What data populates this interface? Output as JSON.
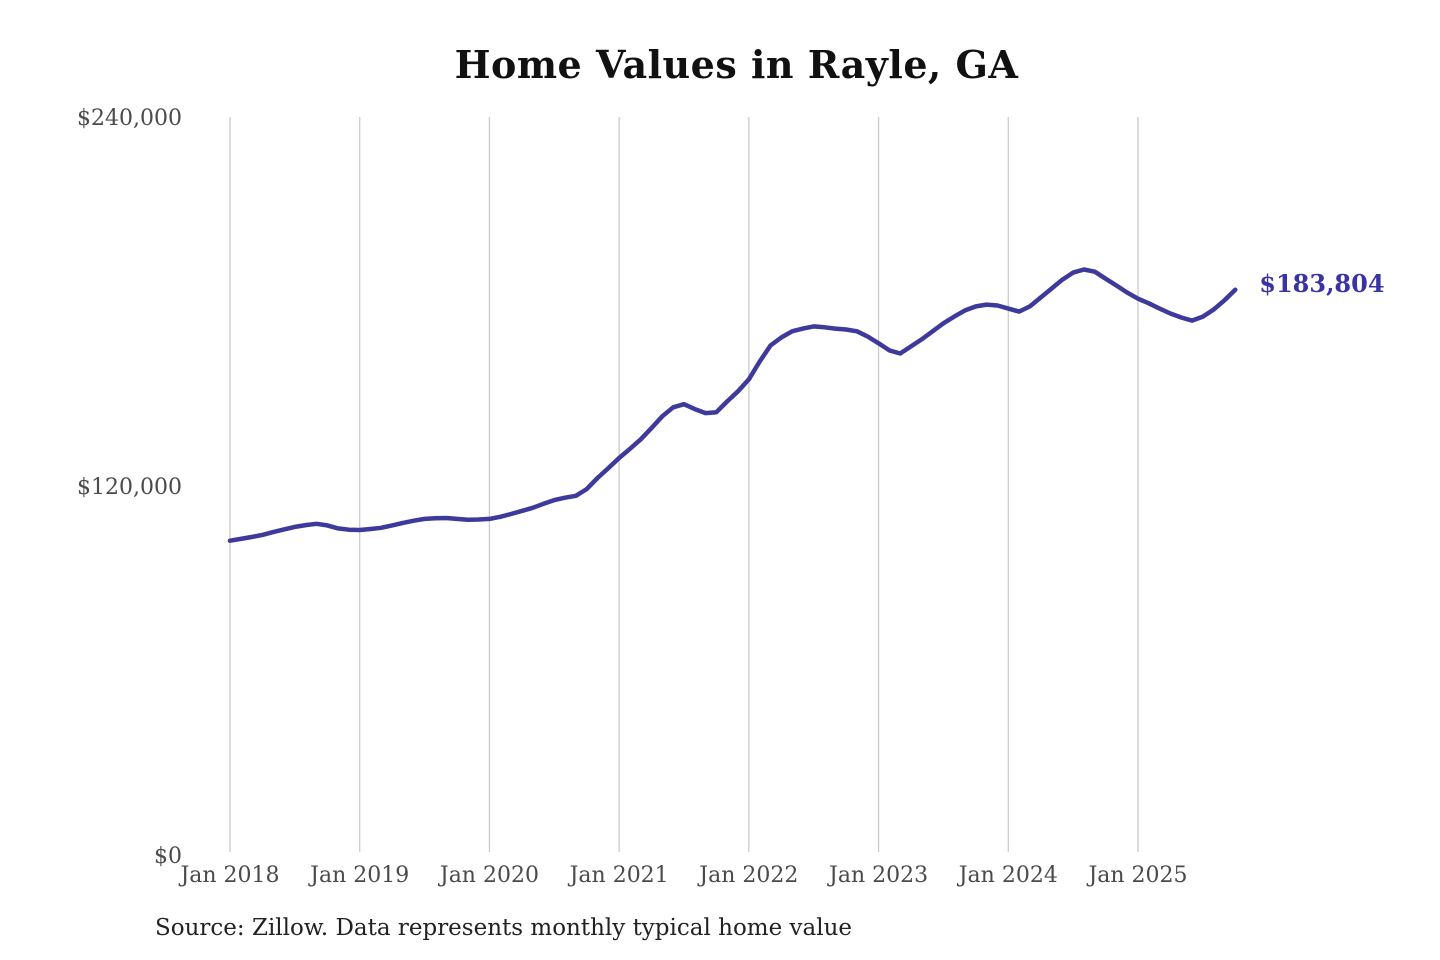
{
  "title": "Home Values in Rayle, GA",
  "source_note": "Source: Zillow. Data represents monthly typical home value",
  "colors": {
    "line": "#3E3A9B",
    "end_label": "#3A34A3",
    "grid": "#CBCBCB",
    "axis_text": "#4A4A4A",
    "title_text": "#111111",
    "source_text": "#222222",
    "background": "#FFFFFF"
  },
  "chart_data": {
    "type": "line",
    "title": "Home Values in Rayle, GA",
    "xlabel": "",
    "ylabel": "",
    "ylim": [
      0,
      240000
    ],
    "grid": "vertical-only",
    "legend": "none",
    "y_ticks": [
      {
        "label": "$0",
        "value": 0
      },
      {
        "label": "$120,000",
        "value": 120000
      },
      {
        "label": "$240,000",
        "value": 240000
      }
    ],
    "x_tick_labels": [
      "Jan 2018",
      "Jan 2019",
      "Jan 2020",
      "Jan 2021",
      "Jan 2022",
      "Jan 2023",
      "Jan 2024",
      "Jan 2025"
    ],
    "frequency": "monthly",
    "x_months": [
      "2018-01",
      "2018-02",
      "2018-03",
      "2018-04",
      "2018-05",
      "2018-06",
      "2018-07",
      "2018-08",
      "2018-09",
      "2018-10",
      "2018-11",
      "2018-12",
      "2019-01",
      "2019-02",
      "2019-03",
      "2019-04",
      "2019-05",
      "2019-06",
      "2019-07",
      "2019-08",
      "2019-09",
      "2019-10",
      "2019-11",
      "2019-12",
      "2020-01",
      "2020-02",
      "2020-03",
      "2020-04",
      "2020-05",
      "2020-06",
      "2020-07",
      "2020-08",
      "2020-09",
      "2020-10",
      "2020-11",
      "2020-12",
      "2021-01",
      "2021-02",
      "2021-03",
      "2021-04",
      "2021-05",
      "2021-06",
      "2021-07",
      "2021-08",
      "2021-09",
      "2021-10",
      "2021-11",
      "2021-12",
      "2022-01",
      "2022-02",
      "2022-03",
      "2022-04",
      "2022-05",
      "2022-06",
      "2022-07",
      "2022-08",
      "2022-09",
      "2022-10",
      "2022-11",
      "2022-12",
      "2023-01",
      "2023-02",
      "2023-03",
      "2023-04",
      "2023-05",
      "2023-06",
      "2023-07",
      "2023-08",
      "2023-09",
      "2023-10",
      "2023-11",
      "2023-12",
      "2024-01",
      "2024-02",
      "2024-03",
      "2024-04",
      "2024-05",
      "2024-06",
      "2024-07",
      "2024-08",
      "2024-09",
      "2024-10",
      "2024-11",
      "2024-12",
      "2025-01",
      "2025-02",
      "2025-03",
      "2025-04",
      "2025-05",
      "2025-06",
      "2025-07",
      "2025-08",
      "2025-09",
      "2025-10"
    ],
    "series": [
      {
        "name": "Typical home value",
        "values": [
          102200,
          102800,
          103400,
          104100,
          105000,
          105900,
          106700,
          107300,
          107700,
          107200,
          106200,
          105800,
          105700,
          106000,
          106400,
          107200,
          108000,
          108700,
          109300,
          109500,
          109600,
          109300,
          109000,
          109100,
          109300,
          110000,
          110900,
          111900,
          112900,
          114200,
          115400,
          116200,
          116800,
          119000,
          122600,
          125800,
          129100,
          132100,
          135200,
          138900,
          142700,
          145600,
          146600,
          145000,
          143700,
          144000,
          147500,
          150800,
          154700,
          160500,
          165700,
          168300,
          170300,
          171200,
          171900,
          171600,
          171200,
          170900,
          170300,
          168600,
          166400,
          164100,
          163100,
          165400,
          167700,
          170300,
          172900,
          175100,
          177100,
          178400,
          179000,
          178700,
          177700,
          176700,
          178400,
          181300,
          184200,
          187100,
          189400,
          190400,
          189700,
          187400,
          185200,
          182900,
          180900,
          179400,
          177700,
          176100,
          174800,
          173800,
          175100,
          177400,
          180400,
          183804
        ]
      }
    ],
    "end_value": 183804,
    "end_value_label": "$183,804"
  }
}
